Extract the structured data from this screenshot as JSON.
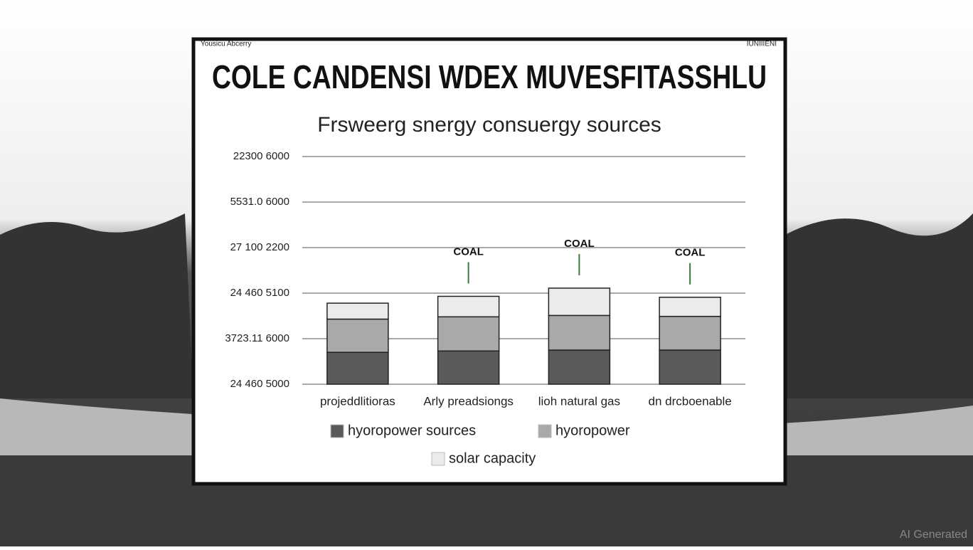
{
  "header": {
    "left": "Yousicu Abcerry",
    "right": "IUNIIIENI"
  },
  "watermark": "AI Generated",
  "chart_data": {
    "type": "bar",
    "stacked": true,
    "title": "COLE CANDENSI WDEX MUVESFITASSHLU",
    "subtitle": "Frsweerg snergy consuergy sources",
    "categories": [
      "projeddlitioras",
      "Arly preadsiongs",
      "lioh natural gas",
      "dn drcboenable"
    ],
    "series": [
      {
        "name": "hyoropower sources",
        "color": "#5a5a5a",
        "values": [
          0.7,
          0.73,
          0.75,
          0.75
        ]
      },
      {
        "name": "hyoropower",
        "color": "#a9a9a9",
        "values": [
          0.73,
          0.75,
          0.76,
          0.74
        ]
      },
      {
        "name": "solar capacity",
        "color": "#ebebeb",
        "values": [
          0.35,
          0.45,
          0.6,
          0.42
        ]
      }
    ],
    "annotations": [
      null,
      "COAL",
      "COAL",
      "COAL"
    ],
    "ylim": [
      0,
      5
    ],
    "yticks": [
      {
        "value": 0,
        "label": "24 460 5000"
      },
      {
        "value": 1,
        "label": "3723.11 6000"
      },
      {
        "value": 2,
        "label": "24 460 5100"
      },
      {
        "value": 3,
        "label": "27 100 2200"
      },
      {
        "value": 4,
        "label": "5531.0 6000"
      },
      {
        "value": 5,
        "label": "22300 6000"
      }
    ],
    "grid": true
  }
}
